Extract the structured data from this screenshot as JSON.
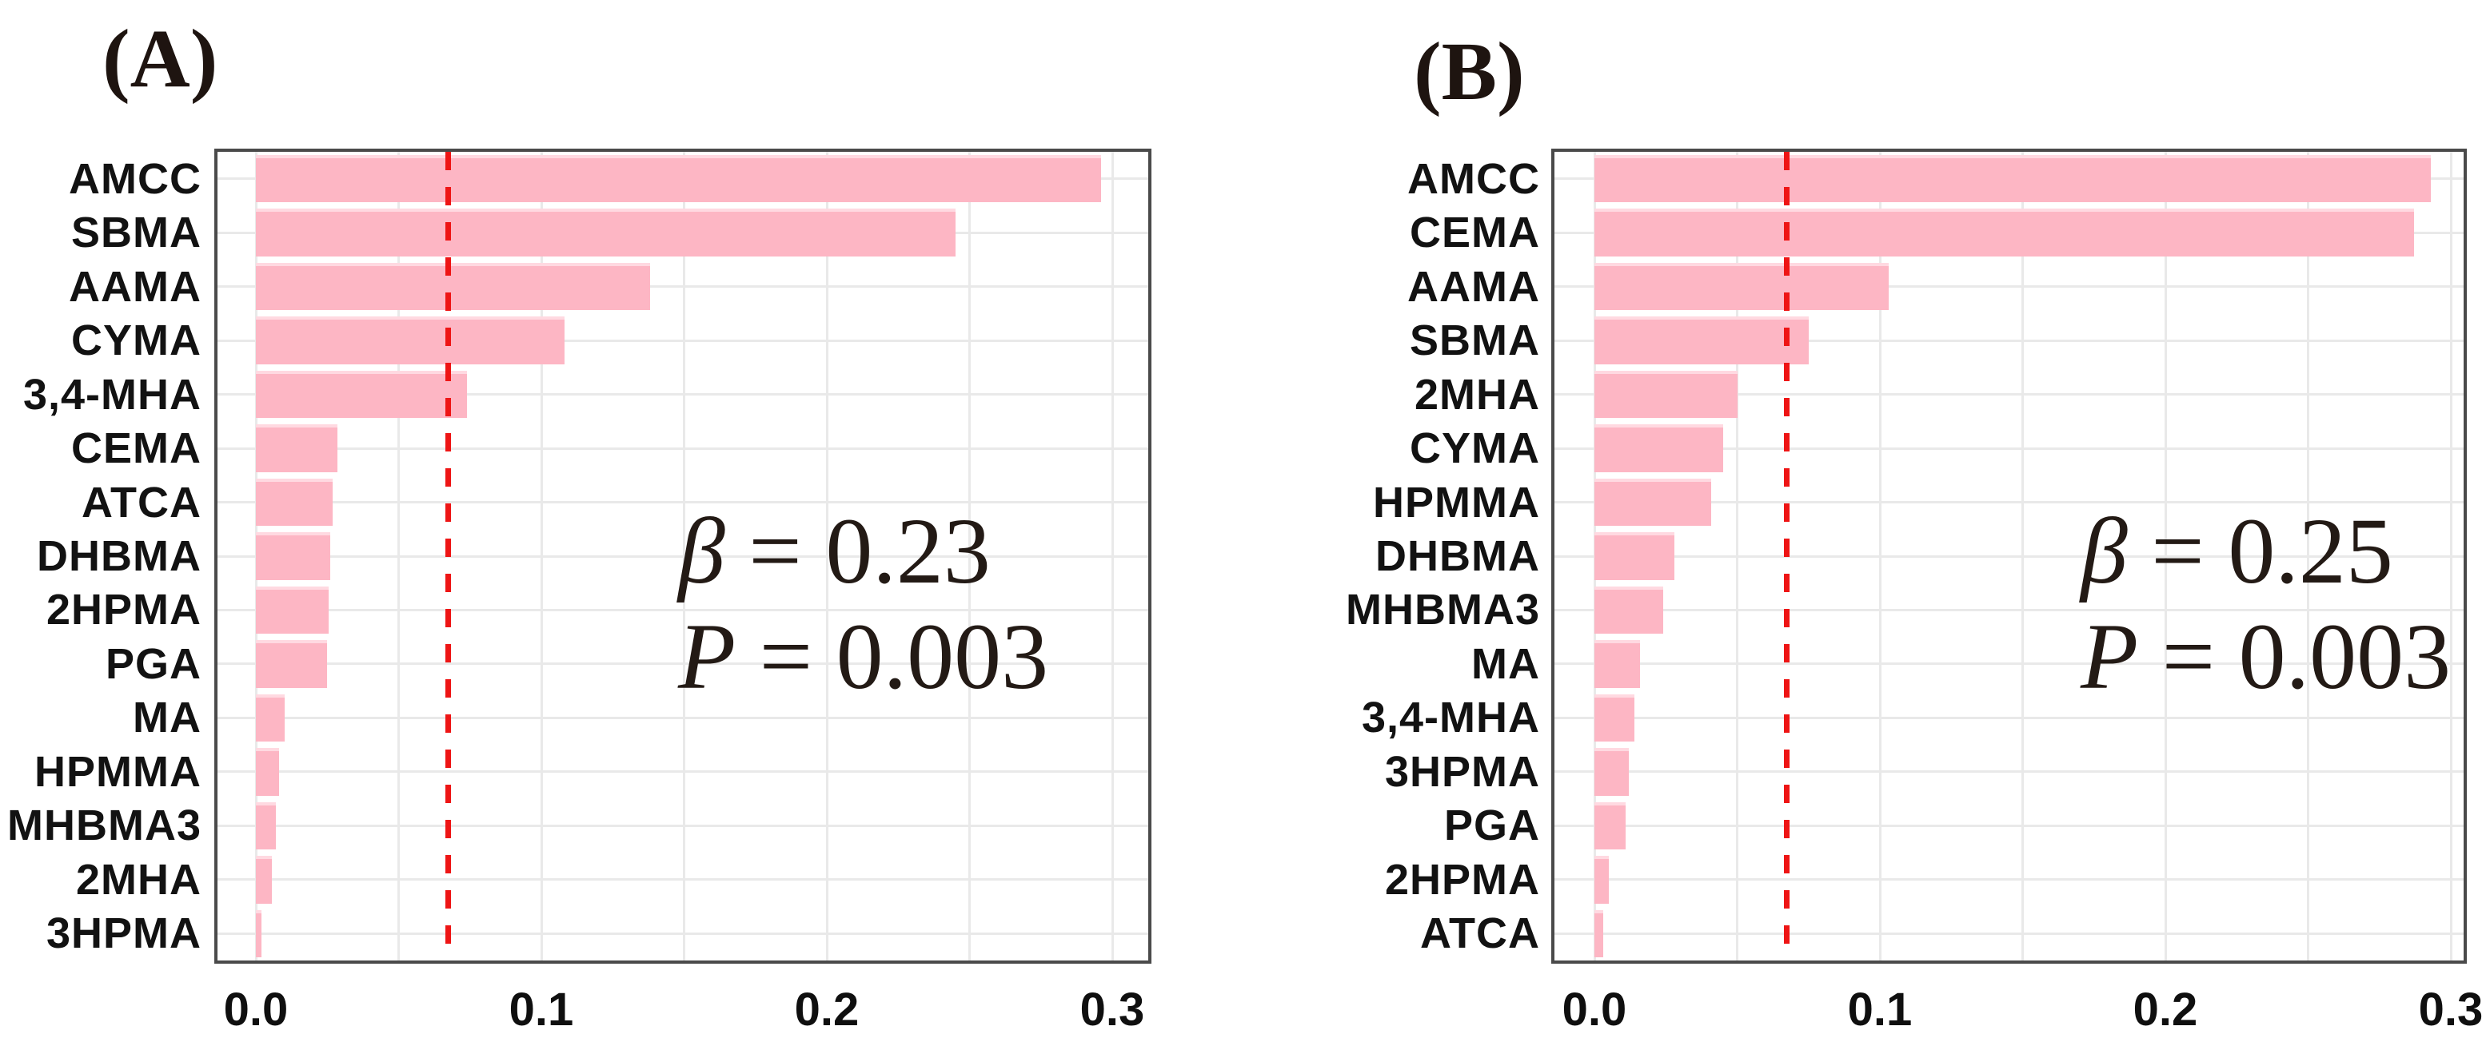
{
  "figure": {
    "background": "#ffffff",
    "bar_color": "#fdb6c4",
    "bar_edge_color": "#ffd9e1",
    "grid_color": "#e9e9e9",
    "frame_color": "#4a4a4a",
    "reference_line_color": "#ee1515",
    "text_color": "#121212"
  },
  "chart_data": [
    {
      "type": "bar",
      "orientation": "horizontal",
      "title": "(A)",
      "categories": [
        "AMCC",
        "SBMA",
        "AAMA",
        "CYMA",
        "3,4-MHA",
        "CEMA",
        "ATCA",
        "DHBMA",
        "2HPMA",
        "PGA",
        "MA",
        "HPMMA",
        "MHBMA3",
        "2MHA",
        "3HPMA"
      ],
      "values": [
        0.296,
        0.245,
        0.138,
        0.108,
        0.074,
        0.0285,
        0.027,
        0.026,
        0.0255,
        0.025,
        0.01,
        0.008,
        0.007,
        0.0055,
        0.002
      ],
      "xlabel": "",
      "ylabel": "",
      "xlim": [
        -0.013,
        0.315
      ],
      "xticks": [
        0,
        0.1,
        0.2,
        0.3
      ],
      "xtick_labels": [
        "0.0",
        "0.1",
        "0.2",
        "0.3"
      ],
      "grid_step": 0.05,
      "grid": "on",
      "legend": "none",
      "reference_line_x": 0.0675,
      "reference_line_style": "dashed",
      "annotation": {
        "beta_sym": "β",
        "beta_rest": " = 0.23",
        "p_sym": "P",
        "p_rest": " = 0.003"
      }
    },
    {
      "type": "bar",
      "orientation": "horizontal",
      "title": "(B)",
      "categories": [
        "AMCC",
        "CEMA",
        "AAMA",
        "SBMA",
        "2MHA",
        "CYMA",
        "HPMMA",
        "DHBMA",
        "MHBMA3",
        "MA",
        "3,4-MHA",
        "3HPMA",
        "PGA",
        "2HPMA",
        "ATCA"
      ],
      "values": [
        0.293,
        0.287,
        0.103,
        0.075,
        0.05,
        0.045,
        0.041,
        0.028,
        0.024,
        0.016,
        0.014,
        0.012,
        0.011,
        0.005,
        0.003
      ],
      "xlabel": "",
      "ylabel": "",
      "xlim": [
        -0.014,
        0.307
      ],
      "xticks": [
        0,
        0.1,
        0.2,
        0.3
      ],
      "xtick_labels": [
        "0.0",
        "0.1",
        "0.2",
        "0.3"
      ],
      "grid_step": 0.05,
      "grid": "on",
      "legend": "none",
      "reference_line_x": 0.0675,
      "reference_line_style": "dashed",
      "annotation": {
        "beta_sym": "β",
        "beta_rest": " = 0.25",
        "p_sym": "P",
        "p_rest": " = 0.003"
      }
    }
  ]
}
